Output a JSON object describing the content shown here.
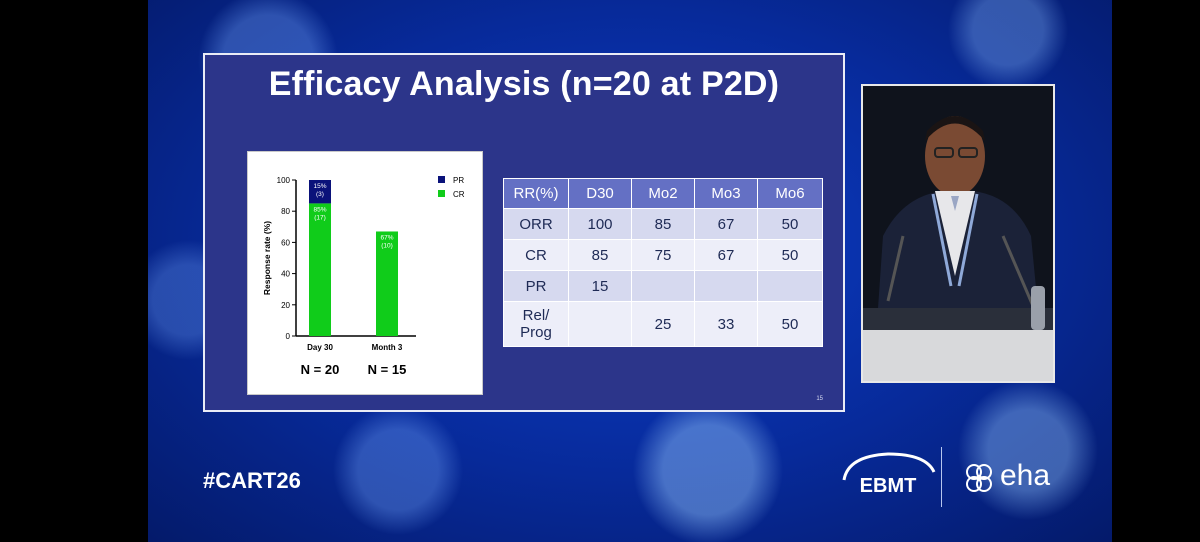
{
  "slide": {
    "title": "Efficacy Analysis (n=20 at P2D)",
    "page_number": "15"
  },
  "chart_data": {
    "type": "bar",
    "title": "",
    "xlabel": "",
    "ylabel": "Response rate (%)",
    "ylim": [
      0,
      100
    ],
    "yticks": [
      "0",
      "20",
      "40",
      "60",
      "80",
      "100"
    ],
    "categories": [
      "Day 30",
      "Month 3"
    ],
    "category_n": [
      "N = 20",
      "N = 15"
    ],
    "stacked": true,
    "legend_position": "top-right",
    "series": [
      {
        "name": "CR",
        "color": "#10cc1a",
        "values": [
          85,
          67
        ],
        "labels": [
          "85%\n(17)",
          "67%\n(10)"
        ]
      },
      {
        "name": "PR",
        "color": "#0a127a",
        "values": [
          15,
          0
        ],
        "labels": [
          "15%\n(3)",
          ""
        ]
      }
    ]
  },
  "table": {
    "headers": [
      "RR(%)",
      "D30",
      "Mo2",
      "Mo3",
      "Mo6"
    ],
    "rows": [
      [
        "ORR",
        "100",
        "85",
        "67",
        "50"
      ],
      [
        "CR",
        "85",
        "75",
        "67",
        "50"
      ],
      [
        "PR",
        "15",
        "",
        "",
        ""
      ],
      [
        "Rel/\nProg",
        "",
        "25",
        "33",
        "50"
      ]
    ]
  },
  "footer": {
    "hashtag": "#CART26",
    "logo_left": "EBMT",
    "logo_right": "eha"
  }
}
